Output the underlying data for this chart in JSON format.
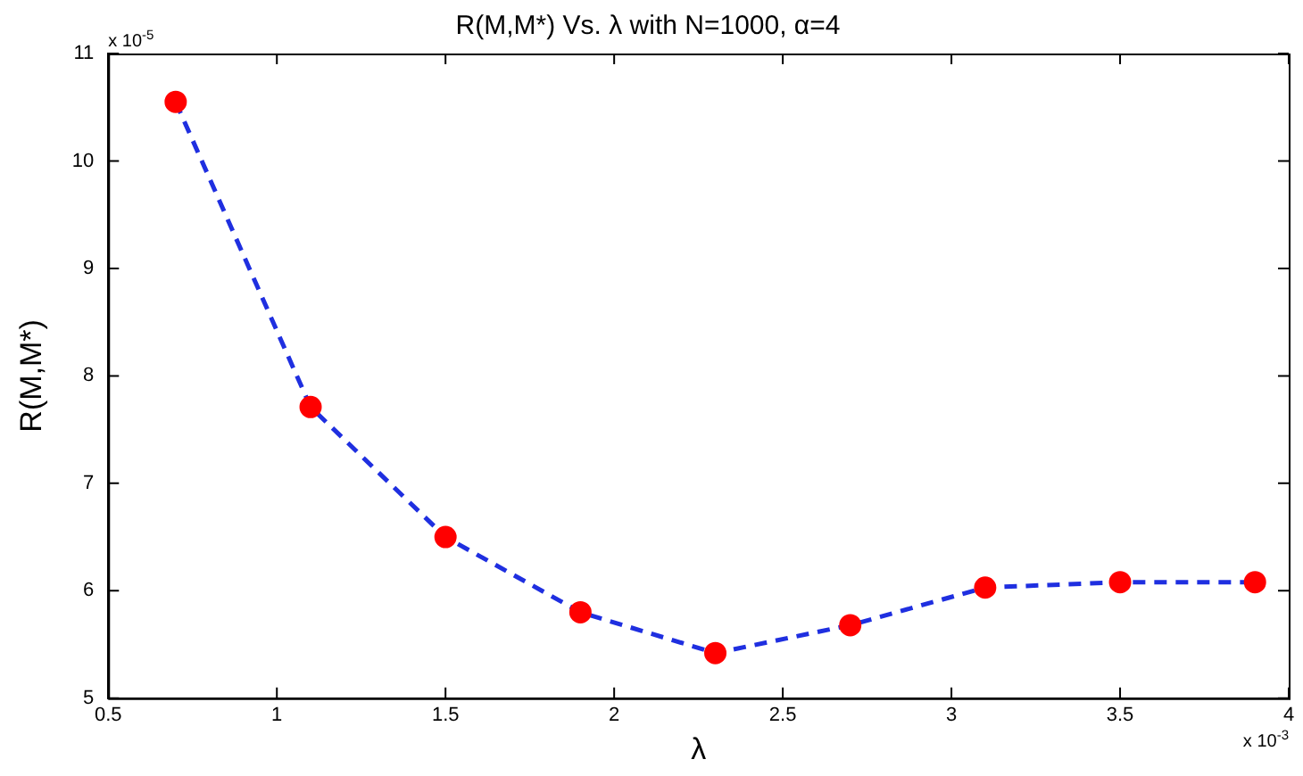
{
  "chart_data": {
    "type": "line",
    "title": "R(M,M*) Vs. λ with N=1000, α=4",
    "xlabel": "λ",
    "ylabel": "R(M,M*)",
    "x": [
      0.7,
      1.1,
      1.5,
      1.9,
      2.3,
      2.7,
      3.1,
      3.5,
      3.9
    ],
    "series": [
      {
        "color": "#1f2fe0",
        "colors": [
          "#ff0000",
          "#ff0000",
          "#ff0000",
          "#ff0000",
          "#ff0000",
          "#ff0000",
          "#ff0000",
          "#ff0000",
          "#ff0000"
        ],
        "values": [
          10.55,
          7.71,
          6.5,
          5.8,
          5.42,
          5.68,
          6.03,
          6.08,
          6.08
        ]
      }
    ],
    "xlim": [
      0.5,
      4
    ],
    "xticks": [
      0.5,
      1,
      1.5,
      2,
      2.5,
      3,
      3.5,
      4
    ],
    "ylim": [
      5,
      11
    ],
    "yticks": [
      5,
      6,
      7,
      8,
      9,
      10,
      11
    ],
    "annotations": [
      "x 10$^{-5}$",
      "x 10$^{-3}$"
    ],
    "marker": "circle",
    "line_style": "dashed",
    "grid": false,
    "legend": false
  }
}
